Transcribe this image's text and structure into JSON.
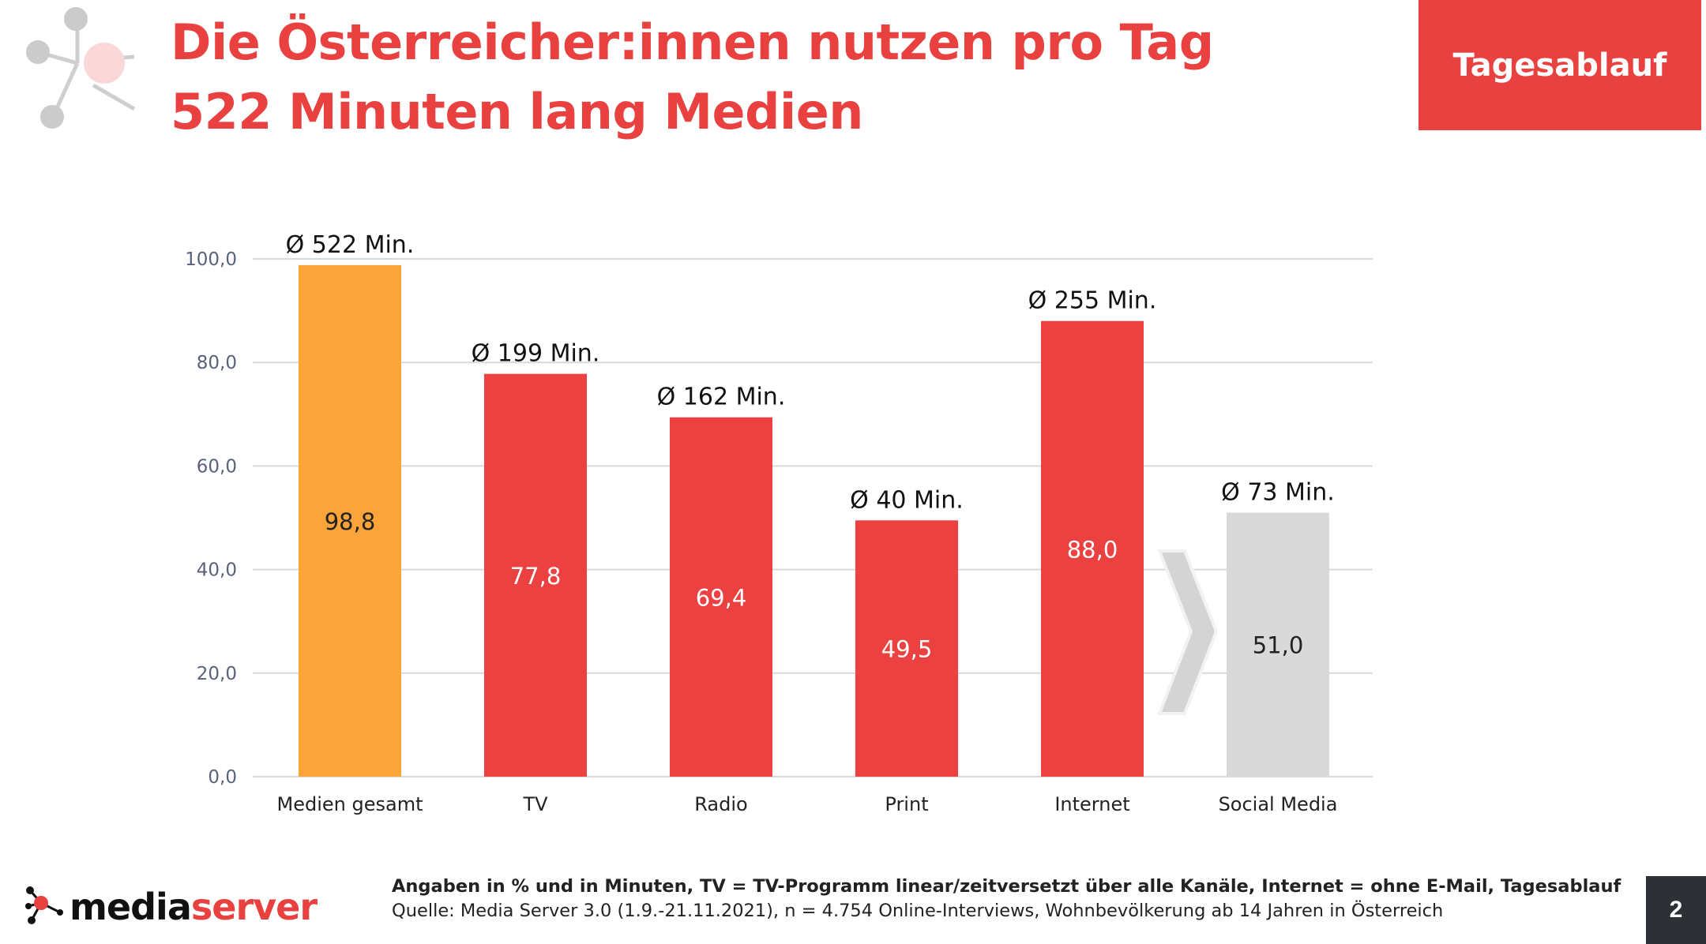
{
  "header": {
    "title_line1": "Die Österreicher:innen nutzen pro Tag",
    "title_line2": "522 Minuten lang Medien",
    "tag": "Tagesablauf"
  },
  "colors": {
    "accent": "#e94040",
    "bar_total": "#fba43a",
    "bar_media": "#ec4141",
    "bar_social": "#d9d9d9",
    "grid": "#d9d9d9",
    "axis_text": "#58627a"
  },
  "chart_data": {
    "type": "bar",
    "categories": [
      "Medien gesamt",
      "TV",
      "Radio",
      "Print",
      "Internet",
      "Social Media"
    ],
    "values": [
      98.8,
      77.8,
      69.4,
      49.5,
      88.0,
      51.0
    ],
    "value_labels": [
      "98,8",
      "77,8",
      "69,4",
      "49,5",
      "88,0",
      "51,0"
    ],
    "minutes_labels": [
      "Ø 522 Min.",
      "Ø 199 Min.",
      "Ø 162 Min.",
      "Ø 40 Min.",
      "Ø 255 Min.",
      "Ø 73 Min."
    ],
    "bar_colors": [
      "#fba43a",
      "#ec4141",
      "#ec4141",
      "#ec4141",
      "#ec4141",
      "#d9d9d9"
    ],
    "value_label_colors": [
      "#222222",
      "#ffffff",
      "#ffffff",
      "#ffffff",
      "#ffffff",
      "#222222"
    ],
    "yticks": [
      0,
      20,
      40,
      60,
      80,
      100
    ],
    "ytick_labels": [
      "0,0",
      "20,0",
      "40,0",
      "60,0",
      "80,0",
      "100,0"
    ],
    "ylim": [
      0,
      100
    ],
    "xlabel": "",
    "ylabel": "",
    "grid": true
  },
  "footer": {
    "brand_part1": "media",
    "brand_part2": "server",
    "note_line1": "Angaben in % und in Minuten, TV = TV-Programm linear/zeitversetzt über alle Kanäle, Internet = ohne E-Mail, Tagesablauf",
    "note_line2": "Quelle: Media Server 3.0 (1.9.-21.11.2021), n = 4.754 Online-Interviews, Wohnbevölkerung ab 14 Jahren in Österreich",
    "page_number": "2"
  }
}
